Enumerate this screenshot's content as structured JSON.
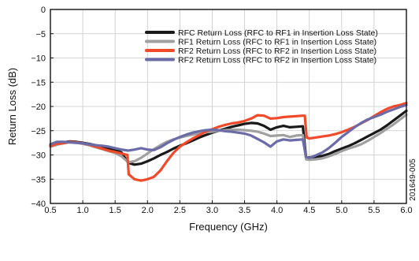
{
  "figure_id": "20164​9-005",
  "chart_data": {
    "type": "line",
    "xlabel": "Frequency (GHz)",
    "ylabel": "Return Loss (dB)",
    "xlim": [
      0.5,
      6.0
    ],
    "ylim": [
      -40,
      0
    ],
    "xticks": [
      0.5,
      1.0,
      1.5,
      2.0,
      2.5,
      3.0,
      3.5,
      4.0,
      4.5,
      5.0,
      5.5,
      6.0
    ],
    "xtick_labels": [
      "0.5",
      "1.0",
      "1.5",
      "2.0",
      "2.5",
      "3.0",
      "3.5",
      "4.0",
      "4.5",
      "5.0",
      "5.5",
      "6.0"
    ],
    "yticks": [
      0,
      -5,
      -10,
      -15,
      -20,
      -25,
      -30,
      -35,
      -40
    ],
    "ytick_labels": [
      "0",
      "−5",
      "−10",
      "−15",
      "−20",
      "−25",
      "−30",
      "−35",
      "−40"
    ],
    "grid": true,
    "legend_position": "top-right",
    "series": [
      {
        "name": "RFC Return Loss (RFC to RF1 in Insertion Loss State)",
        "color": "#1a1a1a",
        "x": [
          0.5,
          0.6,
          0.7,
          0.8,
          0.9,
          1.0,
          1.1,
          1.2,
          1.3,
          1.4,
          1.5,
          1.6,
          1.7,
          1.8,
          1.9,
          2.0,
          2.1,
          2.2,
          2.3,
          2.4,
          2.5,
          2.6,
          2.7,
          2.8,
          2.9,
          3.0,
          3.1,
          3.2,
          3.3,
          3.4,
          3.5,
          3.6,
          3.7,
          3.8,
          3.9,
          4.0,
          4.1,
          4.2,
          4.3,
          4.4,
          4.45,
          4.5,
          4.6,
          4.7,
          4.8,
          4.9,
          5.0,
          5.1,
          5.2,
          5.3,
          5.4,
          5.5,
          5.6,
          5.7,
          5.8,
          5.9,
          6.0
        ],
        "y": [
          -28.0,
          -27.6,
          -27.4,
          -27.2,
          -27.3,
          -27.5,
          -27.7,
          -28.0,
          -28.3,
          -28.6,
          -28.9,
          -29.5,
          -31.6,
          -32.0,
          -31.8,
          -31.3,
          -30.7,
          -30.0,
          -29.4,
          -28.7,
          -28.1,
          -27.6,
          -27.0,
          -26.4,
          -25.9,
          -25.4,
          -25.0,
          -24.6,
          -24.2,
          -23.9,
          -23.6,
          -23.4,
          -23.5,
          -24.0,
          -24.8,
          -24.3,
          -24.0,
          -24.3,
          -24.2,
          -24.1,
          -30.5,
          -30.5,
          -30.4,
          -30.2,
          -29.8,
          -29.2,
          -28.7,
          -28.2,
          -27.6,
          -26.9,
          -26.2,
          -25.5,
          -24.8,
          -23.9,
          -22.9,
          -21.9,
          -20.9
        ]
      },
      {
        "name": "RF1 Return Loss (RFC to RF1 in Insertion Loss State)",
        "color": "#a0a0a0",
        "x": [
          0.5,
          0.6,
          0.7,
          0.8,
          0.9,
          1.0,
          1.1,
          1.2,
          1.3,
          1.4,
          1.5,
          1.6,
          1.7,
          1.8,
          1.9,
          2.0,
          2.1,
          2.2,
          2.3,
          2.4,
          2.5,
          2.6,
          2.7,
          2.8,
          2.9,
          3.0,
          3.1,
          3.2,
          3.3,
          3.4,
          3.5,
          3.6,
          3.7,
          3.8,
          3.9,
          4.0,
          4.1,
          4.2,
          4.3,
          4.4,
          4.45,
          4.5,
          4.6,
          4.7,
          4.8,
          4.9,
          5.0,
          5.1,
          5.2,
          5.3,
          5.4,
          5.5,
          5.6,
          5.7,
          5.8,
          5.9,
          6.0
        ],
        "y": [
          -28.3,
          -27.9,
          -27.6,
          -27.4,
          -27.5,
          -27.7,
          -28.0,
          -28.4,
          -28.8,
          -29.2,
          -29.6,
          -30.3,
          -31.5,
          -31.3,
          -30.6,
          -29.7,
          -28.8,
          -28.0,
          -27.3,
          -26.8,
          -26.4,
          -26.1,
          -25.8,
          -25.5,
          -25.3,
          -25.2,
          -25.0,
          -24.9,
          -24.8,
          -24.8,
          -24.9,
          -25.0,
          -25.2,
          -25.6,
          -26.1,
          -26.0,
          -25.9,
          -26.3,
          -26.0,
          -25.9,
          -30.9,
          -31.0,
          -30.9,
          -30.7,
          -30.3,
          -29.8,
          -29.2,
          -28.7,
          -28.3,
          -27.8,
          -27.1,
          -26.3,
          -25.5,
          -24.6,
          -23.7,
          -22.7,
          -21.7
        ]
      },
      {
        "name": "RF2 Return Loss (RFC to RF2 in Insertion Loss State)",
        "color": "#f04a2a",
        "x": [
          0.5,
          0.6,
          0.7,
          0.8,
          0.9,
          1.0,
          1.1,
          1.2,
          1.3,
          1.4,
          1.5,
          1.6,
          1.69,
          1.71,
          1.8,
          1.9,
          2.0,
          2.1,
          2.2,
          2.3,
          2.4,
          2.5,
          2.6,
          2.7,
          2.8,
          2.9,
          3.0,
          3.1,
          3.2,
          3.3,
          3.4,
          3.5,
          3.6,
          3.7,
          3.8,
          3.9,
          4.0,
          4.1,
          4.2,
          4.3,
          4.4,
          4.43,
          4.46,
          4.5,
          4.6,
          4.7,
          4.8,
          4.9,
          5.0,
          5.1,
          5.2,
          5.3,
          5.4,
          5.5,
          5.6,
          5.7,
          5.8,
          5.9,
          6.0
        ],
        "y": [
          -28.2,
          -27.7,
          -27.6,
          -27.3,
          -27.4,
          -27.6,
          -27.9,
          -28.3,
          -28.7,
          -29.1,
          -29.4,
          -29.7,
          -30.0,
          -34.0,
          -35.0,
          -35.3,
          -35.0,
          -34.5,
          -33.2,
          -31.3,
          -29.6,
          -28.3,
          -27.4,
          -26.6,
          -25.9,
          -25.2,
          -24.7,
          -24.2,
          -23.8,
          -23.5,
          -23.3,
          -23.0,
          -22.5,
          -21.8,
          -21.9,
          -22.5,
          -22.4,
          -22.2,
          -22.1,
          -22.0,
          -21.9,
          -21.9,
          -26.4,
          -26.6,
          -26.4,
          -26.2,
          -26.0,
          -25.7,
          -25.3,
          -24.8,
          -24.2,
          -23.5,
          -22.8,
          -22.0,
          -21.2,
          -20.5,
          -20.0,
          -19.7,
          -19.3
        ]
      },
      {
        "name": "RF2 Return Loss (RFC to RF2 in Insertion Loss State)",
        "color": "#6b6ba8",
        "x": [
          0.5,
          0.6,
          0.7,
          0.8,
          0.9,
          1.0,
          1.1,
          1.2,
          1.3,
          1.4,
          1.5,
          1.6,
          1.7,
          1.8,
          1.9,
          2.0,
          2.1,
          2.2,
          2.3,
          2.4,
          2.5,
          2.6,
          2.7,
          2.8,
          2.9,
          3.0,
          3.1,
          3.2,
          3.3,
          3.4,
          3.5,
          3.6,
          3.7,
          3.8,
          3.9,
          4.0,
          4.1,
          4.2,
          4.3,
          4.4,
          4.45,
          4.5,
          4.6,
          4.7,
          4.8,
          4.9,
          5.0,
          5.1,
          5.2,
          5.3,
          5.4,
          5.5,
          5.6,
          5.7,
          5.8,
          5.9,
          6.0
        ],
        "y": [
          -27.8,
          -27.3,
          -27.3,
          -27.4,
          -27.5,
          -27.6,
          -27.8,
          -28.0,
          -28.1,
          -28.3,
          -28.6,
          -28.9,
          -29.1,
          -28.9,
          -28.6,
          -28.9,
          -29.0,
          -28.4,
          -27.6,
          -26.9,
          -26.3,
          -25.8,
          -25.4,
          -25.1,
          -24.9,
          -24.8,
          -24.9,
          -25.1,
          -25.2,
          -25.4,
          -25.6,
          -26.0,
          -26.7,
          -27.4,
          -28.3,
          -27.2,
          -26.8,
          -27.0,
          -26.9,
          -26.8,
          -30.4,
          -30.6,
          -30.1,
          -29.5,
          -28.6,
          -27.5,
          -26.3,
          -25.3,
          -24.3,
          -23.4,
          -22.7,
          -22.2,
          -21.7,
          -21.1,
          -20.6,
          -20.1,
          -19.7
        ]
      }
    ]
  }
}
